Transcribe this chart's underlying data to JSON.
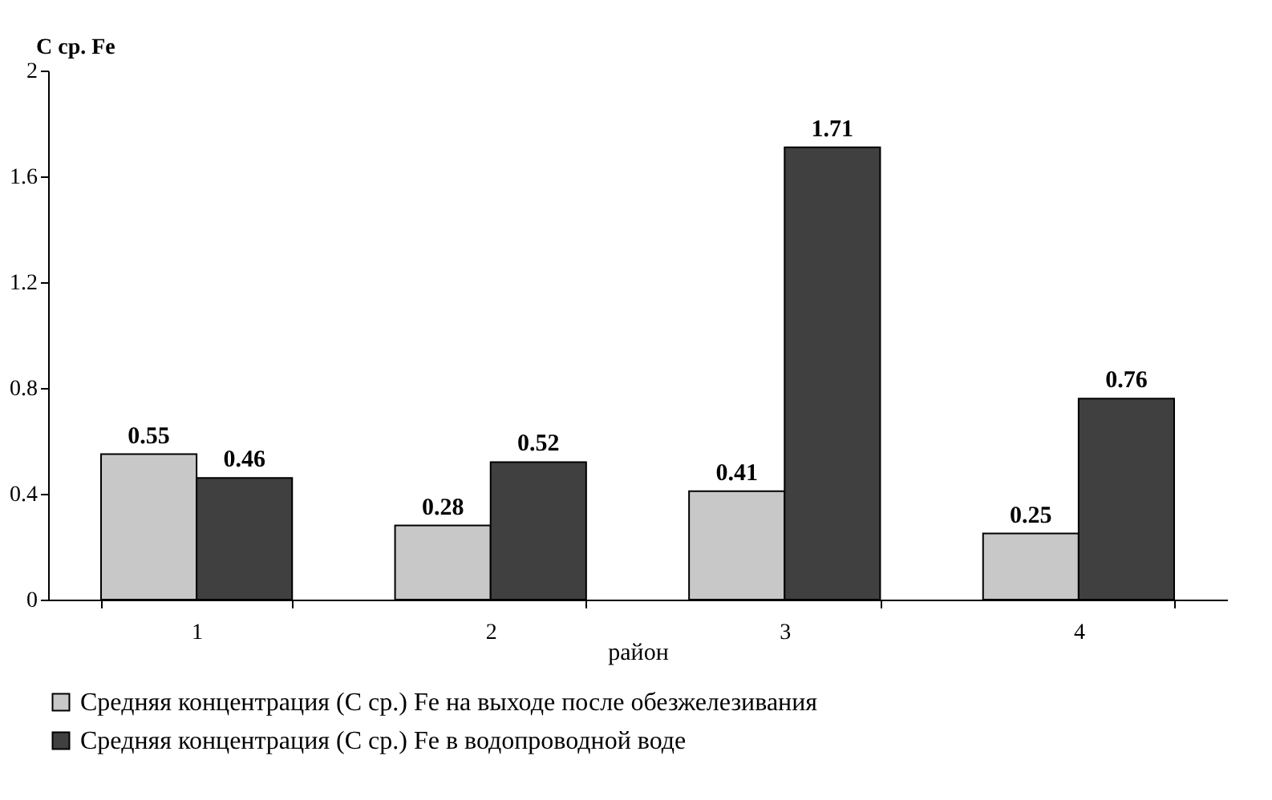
{
  "chart_data": {
    "type": "bar",
    "ylabel": "C ср. Fe",
    "xlabel": "район",
    "categories": [
      "1",
      "2",
      "3",
      "4"
    ],
    "series": [
      {
        "name": "Средняя концентрация (С ср.) Fe на выходе после обезжелезивания",
        "color": "#c8c8c8",
        "values": [
          0.55,
          0.28,
          0.41,
          0.25
        ]
      },
      {
        "name": "Средняя концентрация (С ср.) Fe в водопроводной воде",
        "color": "#404040",
        "values": [
          0.46,
          0.52,
          1.71,
          0.76
        ]
      }
    ],
    "ylim": [
      0,
      2
    ],
    "yticks": [
      0,
      0.4,
      0.8,
      1.2,
      1.6,
      2
    ],
    "grid": false,
    "legend": "bottom",
    "data_labels": true
  }
}
